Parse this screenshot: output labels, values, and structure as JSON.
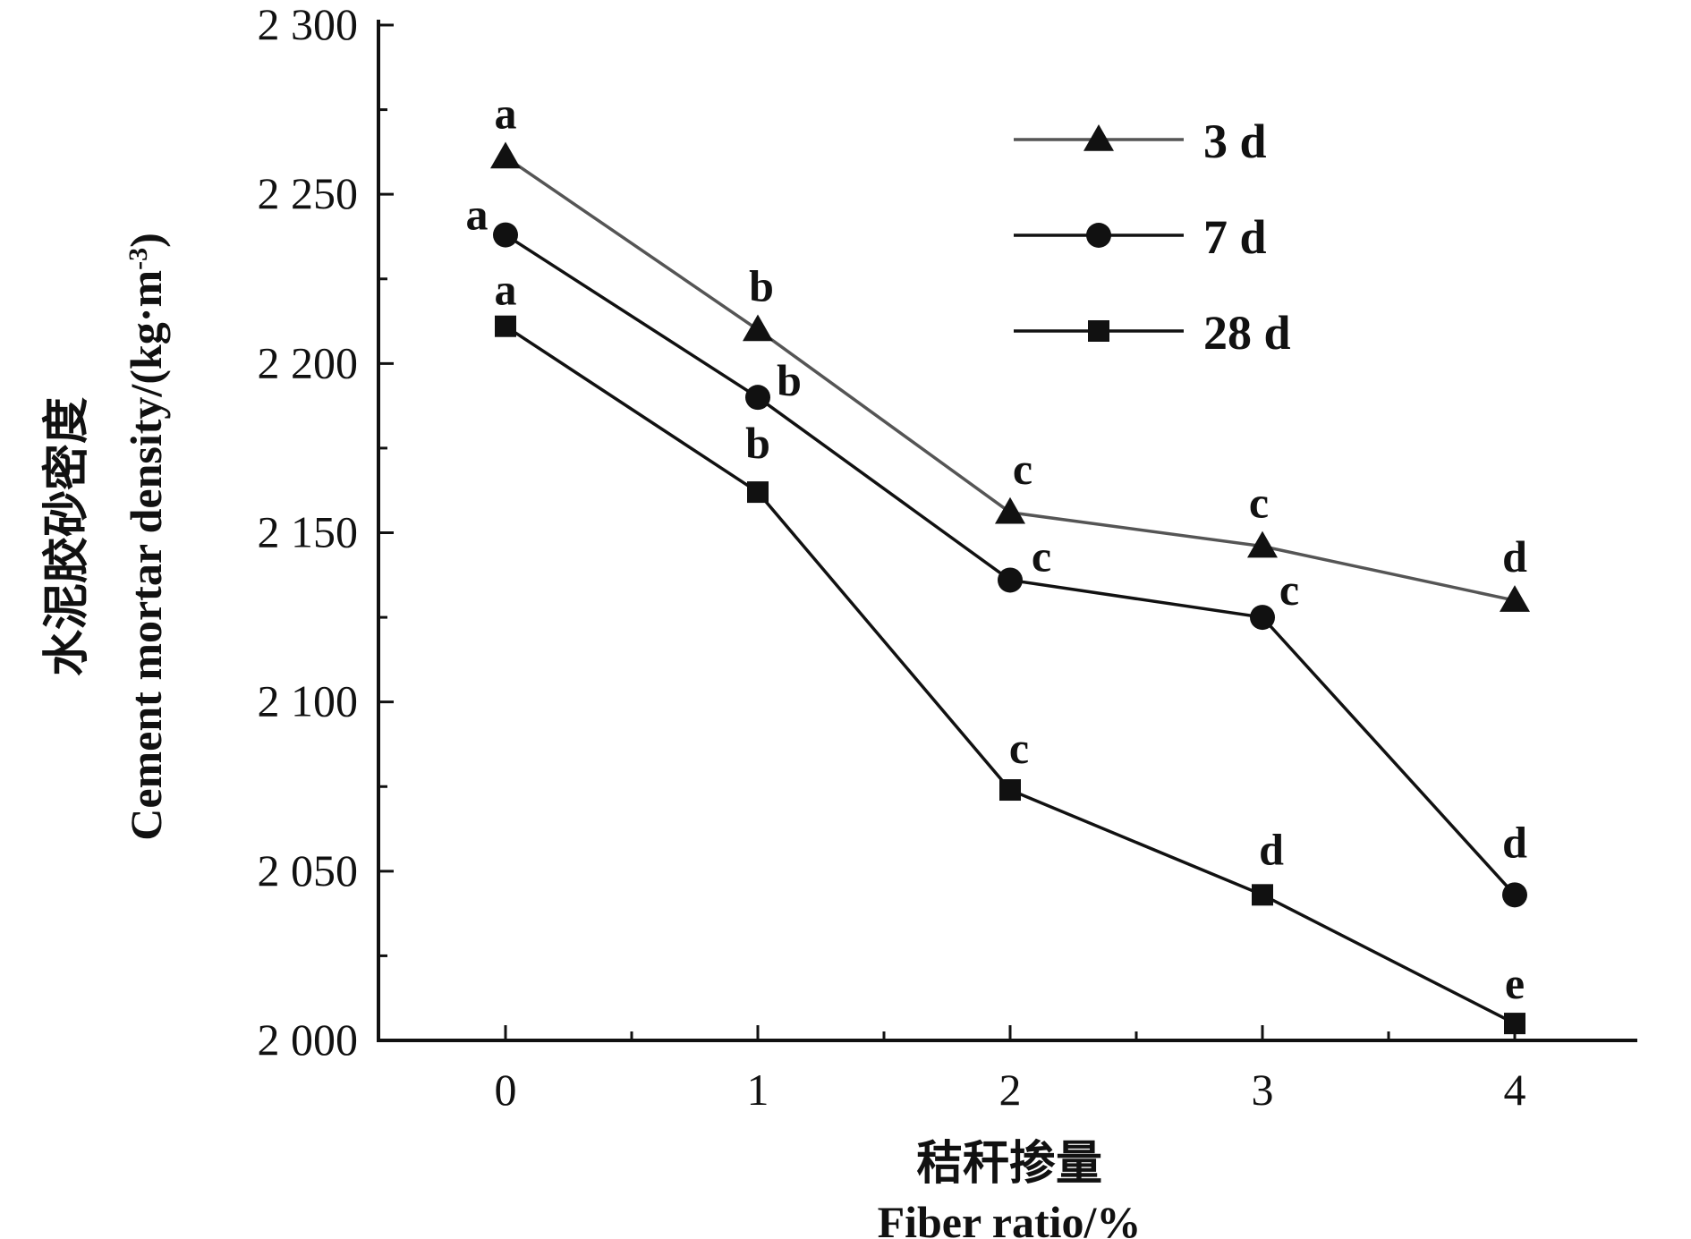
{
  "chart_data": {
    "type": "line",
    "xlabel_cn": "秸秆掺量",
    "xlabel": "Fiber ratio/%",
    "ylabel_cn": "水泥胶砂密度",
    "ylabel": "Cement mortar density/(kg·m",
    "ylabel_sup": "-3",
    "ylabel_close": ")",
    "x": [
      0,
      1,
      2,
      3,
      4
    ],
    "x_ticks": [
      "0",
      "1",
      "2",
      "3",
      "4"
    ],
    "xlim": [
      -0.5,
      4.5
    ],
    "ylim": [
      2000,
      2300
    ],
    "y_ticks": [
      "2 000",
      "2 050",
      "2 100",
      "2 150",
      "2 200",
      "2 250",
      "2 300"
    ],
    "y_tick_values": [
      2000,
      2050,
      2100,
      2150,
      2200,
      2250,
      2300
    ],
    "grid": false,
    "legend_position": "top-right",
    "series": [
      {
        "name": "3 d",
        "marker": "triangle",
        "color": "#555555",
        "values": [
          2261,
          2210,
          2156,
          2146,
          2130
        ],
        "labels": [
          "a",
          "b",
          "c",
          "c",
          "d"
        ]
      },
      {
        "name": "7 d",
        "marker": "circle",
        "color": "#111111",
        "values": [
          2238,
          2190,
          2136,
          2125,
          2043
        ],
        "labels": [
          "a",
          "b",
          "c",
          "c",
          "d"
        ]
      },
      {
        "name": "28 d",
        "marker": "square",
        "color": "#111111",
        "values": [
          2211,
          2162,
          2074,
          2043,
          2005
        ],
        "labels": [
          "a",
          "b",
          "c",
          "d",
          "e"
        ]
      }
    ]
  }
}
